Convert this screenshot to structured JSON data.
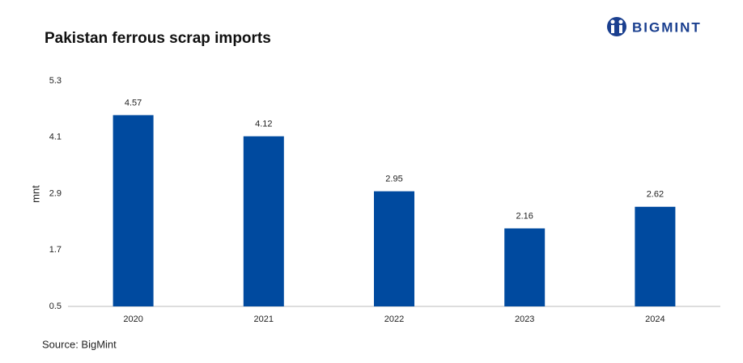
{
  "chart_data": {
    "type": "bar",
    "title": "Pakistan ferrous scrap imports",
    "logo": "BIGMINT",
    "source": "Source: BigMint",
    "y_label": "mnt",
    "categories": [
      "2020",
      "2021",
      "2022",
      "2023",
      "2024"
    ],
    "values": [
      4.57,
      4.12,
      2.95,
      2.16,
      2.62
    ],
    "color": "#004a9f",
    "ylim": [
      0.5,
      5.3
    ],
    "yticks": [
      0.5,
      1.7,
      2.9,
      4.1,
      5.3
    ],
    "grid": false
  }
}
